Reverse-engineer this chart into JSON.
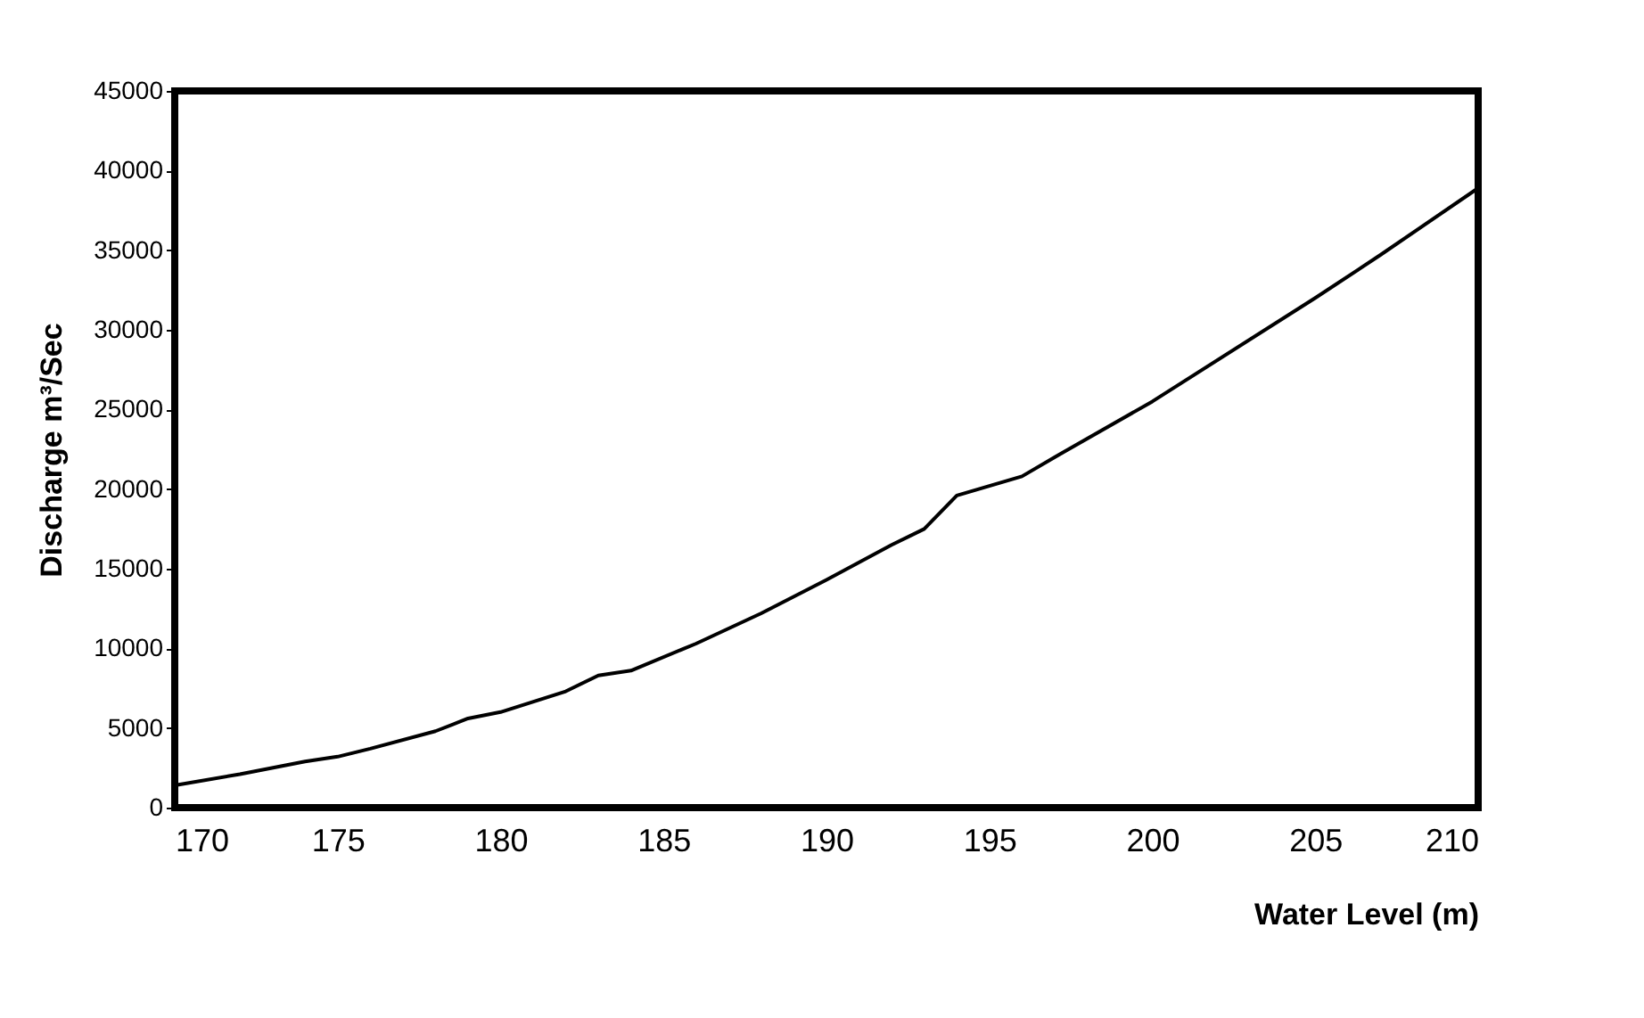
{
  "chart_data": {
    "type": "line",
    "xlabel": "Water Level (m)",
    "ylabel": "Discharge   m³/Sec",
    "x": [
      170,
      172,
      174,
      175,
      176,
      178,
      179,
      180,
      182,
      183,
      184,
      186,
      188,
      190,
      192,
      193,
      194,
      195,
      196,
      197,
      200,
      205,
      207,
      210
    ],
    "series": [
      {
        "color": "#000000",
        "values": [
          1400,
          2100,
          2900,
          3200,
          3700,
          4800,
          5600,
          6000,
          7300,
          8300,
          8600,
          10300,
          12200,
          14300,
          16500,
          17500,
          19600,
          20200,
          20800,
          22000,
          25500,
          32000,
          34700,
          38900
        ]
      }
    ],
    "xlim": [
      170,
      210
    ],
    "xticks": [
      170,
      175,
      180,
      185,
      190,
      195,
      200,
      205,
      210
    ],
    "ylim": [
      0,
      45000
    ],
    "yticks": [
      0,
      5000,
      10000,
      15000,
      20000,
      25000,
      30000,
      35000,
      40000,
      45000
    ],
    "grid": false,
    "marker": "none",
    "line_style": "solid"
  }
}
